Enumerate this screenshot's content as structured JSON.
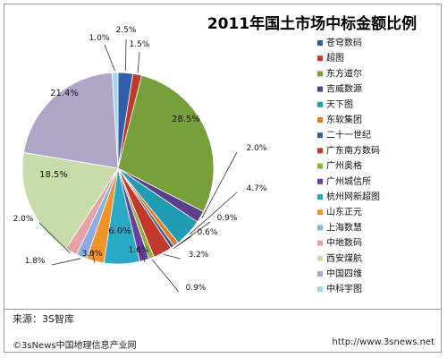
{
  "chart_data": {
    "type": "pie",
    "title": "2011年国土市场中标金额比例",
    "legend_position": "right",
    "slices": [
      {
        "name": "苍穹数码",
        "value": 2.5,
        "color": "#2e5fa8"
      },
      {
        "name": "超图",
        "value": 1.5,
        "color": "#c0392b"
      },
      {
        "name": "东方道尔",
        "value": 28.5,
        "color": "#77a03a"
      },
      {
        "name": "吉威数源",
        "value": 2.0,
        "color": "#5b3f8e"
      },
      {
        "name": "天下图",
        "value": 4.7,
        "color": "#1f9bb4"
      },
      {
        "name": "东软集团",
        "value": 0.9,
        "color": "#e47c22"
      },
      {
        "name": "二十一世纪",
        "value": 0.6,
        "color": "#375e94"
      },
      {
        "name": "广东南方数码",
        "value": 3.2,
        "color": "#c0392b"
      },
      {
        "name": "广州奥格",
        "value": 0.9,
        "color": "#8bb33f"
      },
      {
        "name": "广州城信所",
        "value": 1.6,
        "color": "#6b3fa0"
      },
      {
        "name": "杭州网新超图",
        "value": 6.0,
        "color": "#29a9c6"
      },
      {
        "name": "山东正元",
        "value": 3.0,
        "color": "#f0932b"
      },
      {
        "name": "上海数慧",
        "value": 1.8,
        "color": "#8aaee0"
      },
      {
        "name": "中地数码",
        "value": 2.0,
        "color": "#e7a3a3"
      },
      {
        "name": "西安煤航",
        "value": 18.5,
        "color": "#c8dcaa"
      },
      {
        "name": "中国四维",
        "value": 21.4,
        "color": "#b0a6c8"
      },
      {
        "name": "中科宇图",
        "value": 1.0,
        "color": "#a6d6e6"
      }
    ],
    "data_labels": [
      "2.5%",
      "1.5%",
      "28.5%",
      "2.0%",
      "4.7%",
      "0.9%",
      "0.6%",
      "3.2%",
      "0.9%",
      "1.6%",
      "6.0%",
      "3.0%",
      "1.8%",
      "2.0%",
      "18.5%",
      "21.4%",
      "1.0%"
    ]
  },
  "footer": {
    "source": "来源：3S智库",
    "left": "©3sNews中国地理信息产业网",
    "right": "http://www.3snews.net"
  }
}
